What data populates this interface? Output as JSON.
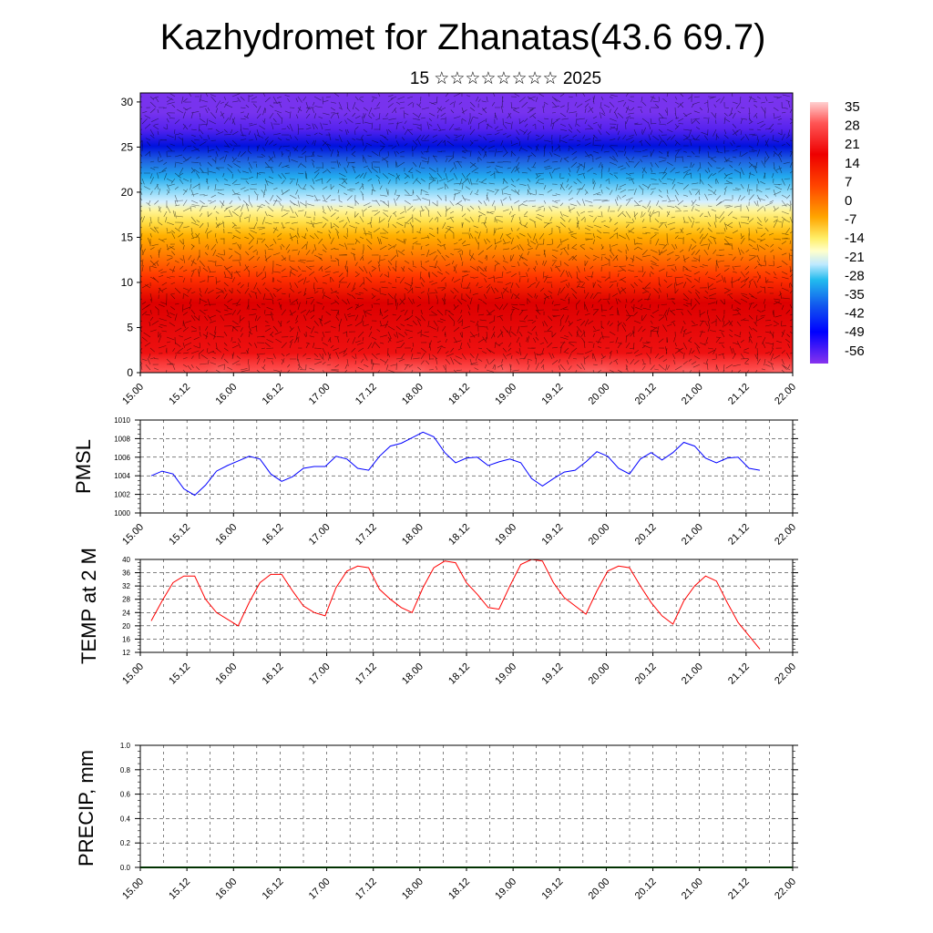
{
  "title": "Kazhydromet for Zhanatas(43.6 69.7)",
  "subtitle": "15 ☆☆☆☆☆☆☆☆ 2025",
  "x_labels": [
    "15.00",
    "15.12",
    "16.00",
    "16.12",
    "17.00",
    "17.12",
    "18.00",
    "18.12",
    "19.00",
    "19.12",
    "20.00",
    "20.12",
    "21.00",
    "21.12",
    "22.00"
  ],
  "colorbar": {
    "labels": [
      "35",
      "28",
      "21",
      "14",
      "7",
      "0",
      "-7",
      "-14",
      "-21",
      "-28",
      "-35",
      "-42",
      "-49",
      "-56"
    ],
    "colors": {
      "hot": "#ff0000",
      "warm": "#ffa500",
      "yellow": "#ffff66",
      "cyan": "#22bbee",
      "blue": "#0000ff",
      "violet": "#8833ee"
    }
  },
  "chart_data": [
    {
      "type": "heatmap",
      "yticks": [
        "0",
        "5",
        "10",
        "15",
        "20",
        "25",
        "30"
      ],
      "ylim": [
        0,
        31
      ],
      "color_range": [
        -56,
        35
      ]
    },
    {
      "type": "line",
      "ylabel": "PMSL",
      "ylim": [
        1000,
        1010
      ],
      "yticks": [
        "1010",
        "1008",
        "1006",
        "1004",
        "1002",
        "1000"
      ],
      "color": "#0000ff",
      "values": [
        1004.0,
        1004.5,
        1004.2,
        1002.6,
        1001.9,
        1003.0,
        1004.5,
        1005.1,
        1005.6,
        1006.1,
        1005.8,
        1004.2,
        1003.4,
        1003.9,
        1004.8,
        1005.0,
        1005.0,
        1006.1,
        1005.8,
        1004.8,
        1004.6,
        1006.1,
        1007.2,
        1007.5,
        1008.1,
        1008.7,
        1008.2,
        1006.5,
        1005.4,
        1005.9,
        1006.0,
        1005.1,
        1005.5,
        1005.8,
        1005.4,
        1003.7,
        1002.9,
        1003.7,
        1004.4,
        1004.6,
        1005.5,
        1006.6,
        1006.1,
        1004.8,
        1004.2,
        1005.8,
        1006.5,
        1005.7,
        1006.5,
        1007.6,
        1007.2,
        1005.9,
        1005.4,
        1005.9,
        1006.0,
        1004.8,
        1004.6
      ]
    },
    {
      "type": "line",
      "ylabel": "TEMP at 2 M",
      "ylim": [
        12,
        40
      ],
      "yticks": [
        "40",
        "36",
        "32",
        "28",
        "24",
        "20",
        "16",
        "12"
      ],
      "color": "#ff0000",
      "values": [
        21.5,
        27.5,
        33,
        35,
        35,
        28,
        24,
        22,
        20,
        27,
        33,
        35.5,
        35.5,
        30.5,
        26,
        24,
        23,
        31.5,
        36.5,
        38,
        37.5,
        31,
        28,
        25.5,
        24,
        31.5,
        37.5,
        39.5,
        39,
        33,
        29.5,
        25.5,
        25,
        32,
        38.5,
        40,
        39.5,
        33,
        28.5,
        26,
        23.5,
        30.5,
        36.5,
        38,
        37.5,
        32,
        27,
        23,
        20.5,
        27.5,
        32,
        35,
        33.5,
        27,
        21,
        17,
        13
      ]
    },
    {
      "type": "bar",
      "ylabel": "PRECIP, mm",
      "ylim": [
        0,
        1
      ],
      "yticks": [
        "1.0",
        "0.8",
        "0.6",
        "0.4",
        "0.2",
        "0.0"
      ],
      "color": "#006400",
      "values": [
        0
      ]
    }
  ]
}
